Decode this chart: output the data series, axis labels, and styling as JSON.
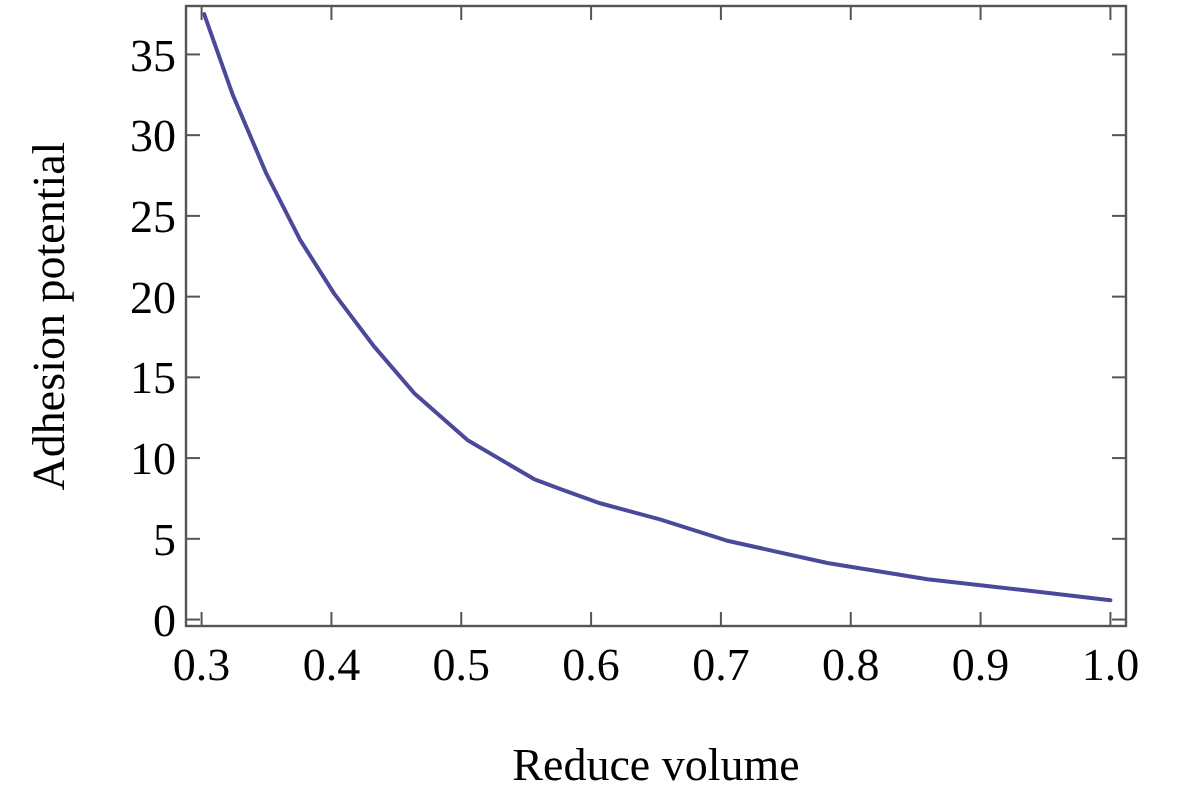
{
  "chart_data": {
    "type": "line",
    "xlabel": "Reduce volume",
    "ylabel": "Adhesion potential",
    "xlim": [
      0.288,
      1.012
    ],
    "ylim": [
      -0.4,
      38
    ],
    "xticks": [
      {
        "value": 0.3,
        "label": "0.3"
      },
      {
        "value": 0.4,
        "label": "0.4"
      },
      {
        "value": 0.5,
        "label": "0.5"
      },
      {
        "value": 0.6,
        "label": "0.6"
      },
      {
        "value": 0.7,
        "label": "0.7"
      },
      {
        "value": 0.8,
        "label": "0.8"
      },
      {
        "value": 0.9,
        "label": "0.9"
      },
      {
        "value": 1.0,
        "label": "1.0"
      }
    ],
    "yticks": [
      0,
      5,
      10,
      15,
      20,
      25,
      30,
      35
    ],
    "marker": "none",
    "line_style": "solid",
    "series": [
      {
        "color": "#4b4a9a",
        "x": [
          0.302,
          0.324,
          0.35,
          0.376,
          0.402,
          0.433,
          0.464,
          0.505,
          0.556,
          0.576,
          0.607,
          0.653,
          0.704,
          0.782,
          0.859,
          0.936,
          1.0
        ],
        "values": [
          37.5,
          32.5,
          27.6,
          23.5,
          20.2,
          16.9,
          14.0,
          11.1,
          8.7,
          8.1,
          7.2,
          6.2,
          4.9,
          3.5,
          2.5,
          1.8,
          1.2
        ]
      }
    ]
  }
}
